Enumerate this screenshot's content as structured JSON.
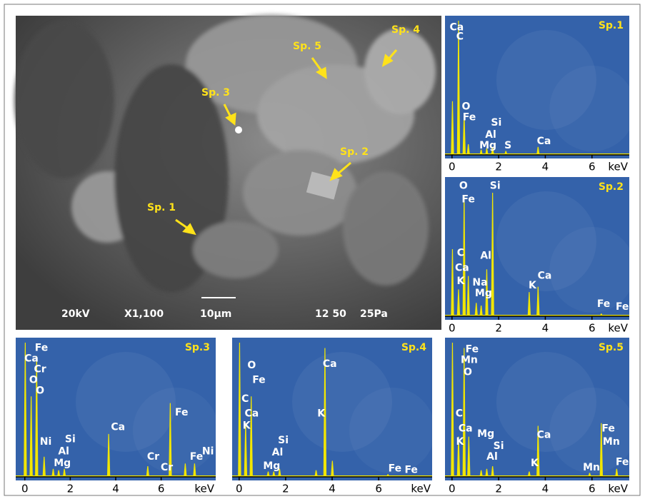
{
  "image": {
    "labels": [
      "Sp. 1",
      "Sp. 2",
      "Sp. 3",
      "Sp. 4",
      "Sp. 5"
    ],
    "info": [
      "20kV",
      "X1,100",
      "10μm",
      "12 50",
      "25Pa"
    ]
  },
  "chart_data": [
    {
      "type": "spectrum",
      "title": "Sp.1",
      "xlabel": "keV",
      "color": "#f2e600",
      "background": "#3462aa",
      "xlim": [
        -0.3,
        7.6
      ],
      "xticks": [
        0,
        2,
        4,
        6
      ],
      "ylim": [
        0,
        100
      ],
      "x": [
        0.02,
        0.28,
        0.52,
        0.7,
        1.25,
        1.49,
        1.74,
        2.31,
        3.69
      ],
      "values": [
        40,
        100,
        30,
        8,
        4,
        5,
        6,
        3,
        6
      ],
      "annotations": [
        {
          "text": "Ca",
          "x": 0.2,
          "y": 95
        },
        {
          "text": "C",
          "x": 0.34,
          "y": 88
        },
        {
          "text": "O",
          "x": 0.6,
          "y": 36
        },
        {
          "text": "Fe",
          "x": 0.74,
          "y": 28
        },
        {
          "text": "Si",
          "x": 1.9,
          "y": 24
        },
        {
          "text": "Al",
          "x": 1.66,
          "y": 15
        },
        {
          "text": "Mg",
          "x": 1.54,
          "y": 7
        },
        {
          "text": "S",
          "x": 2.4,
          "y": 7
        },
        {
          "text": "Ca",
          "x": 3.94,
          "y": 10
        }
      ]
    },
    {
      "type": "spectrum",
      "title": "Sp.2",
      "xlabel": "keV",
      "color": "#f2e600",
      "background": "#3462aa",
      "xlim": [
        -0.3,
        7.6
      ],
      "xticks": [
        0,
        2,
        4,
        6
      ],
      "ylim": [
        0,
        100
      ],
      "x": [
        0.02,
        0.28,
        0.52,
        0.7,
        1.04,
        1.25,
        1.49,
        1.74,
        3.31,
        3.69,
        6.4
      ],
      "values": [
        50,
        20,
        90,
        30,
        10,
        8,
        35,
        92,
        18,
        22,
        2
      ],
      "annotations": [
        {
          "text": "O",
          "x": 0.49,
          "y": 97
        },
        {
          "text": "Fe",
          "x": 0.7,
          "y": 87
        },
        {
          "text": "Si",
          "x": 1.85,
          "y": 97
        },
        {
          "text": "Al",
          "x": 1.45,
          "y": 45
        },
        {
          "text": "C",
          "x": 0.37,
          "y": 47
        },
        {
          "text": "Ca",
          "x": 0.43,
          "y": 36
        },
        {
          "text": "K",
          "x": 0.37,
          "y": 26
        },
        {
          "text": "Na",
          "x": 1.2,
          "y": 25
        },
        {
          "text": "Mg",
          "x": 1.35,
          "y": 17
        },
        {
          "text": "K",
          "x": 3.45,
          "y": 23
        },
        {
          "text": "Ca",
          "x": 3.97,
          "y": 30
        },
        {
          "text": "Fe",
          "x": 6.5,
          "y": 9
        },
        {
          "text": "Fe",
          "x": 7.3,
          "y": 7
        }
      ]
    },
    {
      "type": "spectrum",
      "title": "Sp.3",
      "xlabel": "keV",
      "color": "#f2e600",
      "background": "#3462aa",
      "xlim": [
        -0.4,
        8.4
      ],
      "xticks": [
        0,
        2,
        4,
        6
      ],
      "ylim": [
        0,
        100
      ],
      "x": [
        0.02,
        0.28,
        0.52,
        0.85,
        1.25,
        1.49,
        1.74,
        3.69,
        5.41,
        6.4,
        7.06,
        7.47
      ],
      "values": [
        100,
        60,
        90,
        15,
        6,
        5,
        6,
        32,
        8,
        55,
        10,
        10
      ],
      "annotations": [
        {
          "text": "Fe",
          "x": 0.73,
          "y": 96
        },
        {
          "text": "Ca",
          "x": 0.29,
          "y": 88
        },
        {
          "text": "Cr",
          "x": 0.67,
          "y": 80
        },
        {
          "text": "O",
          "x": 0.38,
          "y": 72
        },
        {
          "text": "O",
          "x": 0.67,
          "y": 64
        },
        {
          "text": "Ni",
          "x": 0.92,
          "y": 26
        },
        {
          "text": "Si",
          "x": 2.0,
          "y": 28
        },
        {
          "text": "Al",
          "x": 1.71,
          "y": 19
        },
        {
          "text": "Mg",
          "x": 1.65,
          "y": 10
        },
        {
          "text": "Ca",
          "x": 4.1,
          "y": 37
        },
        {
          "text": "Cr",
          "x": 5.65,
          "y": 15
        },
        {
          "text": "Cr",
          "x": 6.25,
          "y": 7
        },
        {
          "text": "Fe",
          "x": 6.9,
          "y": 48
        },
        {
          "text": "Fe",
          "x": 7.55,
          "y": 15
        },
        {
          "text": "Ni",
          "x": 8.06,
          "y": 19
        }
      ]
    },
    {
      "type": "spectrum",
      "title": "Sp.4",
      "xlabel": "keV",
      "color": "#f2e600",
      "background": "#3462aa",
      "xlim": [
        -0.3,
        8.3
      ],
      "xticks": [
        0,
        2,
        4,
        6
      ],
      "ylim": [
        0,
        100
      ],
      "x": [
        0.02,
        0.28,
        0.52,
        1.25,
        1.49,
        1.74,
        3.31,
        3.69,
        4.01,
        6.4
      ],
      "values": [
        100,
        40,
        60,
        4,
        4,
        6,
        5,
        96,
        12,
        2
      ],
      "annotations": [
        {
          "text": "O",
          "x": 0.54,
          "y": 83
        },
        {
          "text": "Fe",
          "x": 0.85,
          "y": 72
        },
        {
          "text": "C",
          "x": 0.26,
          "y": 58
        },
        {
          "text": "Ca",
          "x": 0.54,
          "y": 47
        },
        {
          "text": "K",
          "x": 0.32,
          "y": 38
        },
        {
          "text": "Ca",
          "x": 3.9,
          "y": 84
        },
        {
          "text": "K",
          "x": 3.53,
          "y": 47
        },
        {
          "text": "Si",
          "x": 1.9,
          "y": 27
        },
        {
          "text": "Al",
          "x": 1.65,
          "y": 18
        },
        {
          "text": "Mg",
          "x": 1.4,
          "y": 8
        },
        {
          "text": "Fe",
          "x": 6.7,
          "y": 6
        },
        {
          "text": "Fe",
          "x": 7.4,
          "y": 5
        }
      ]
    },
    {
      "type": "spectrum",
      "title": "Sp.5",
      "xlabel": "keV",
      "color": "#f2e600",
      "background": "#3462aa",
      "xlim": [
        -0.3,
        7.6
      ],
      "xticks": [
        0,
        2,
        4,
        6
      ],
      "ylim": [
        0,
        100
      ],
      "x": [
        0.02,
        0.28,
        0.52,
        0.72,
        1.25,
        1.49,
        1.74,
        3.31,
        3.69,
        5.9,
        6.4,
        7.06
      ],
      "values": [
        100,
        30,
        96,
        30,
        5,
        6,
        8,
        4,
        38,
        3,
        40,
        6
      ],
      "annotations": [
        {
          "text": "Fe",
          "x": 0.86,
          "y": 95
        },
        {
          "text": "Mn",
          "x": 0.74,
          "y": 87
        },
        {
          "text": "O",
          "x": 0.68,
          "y": 78
        },
        {
          "text": "C",
          "x": 0.31,
          "y": 47
        },
        {
          "text": "Ca",
          "x": 0.58,
          "y": 36
        },
        {
          "text": "K",
          "x": 0.34,
          "y": 26
        },
        {
          "text": "Mg",
          "x": 1.45,
          "y": 32
        },
        {
          "text": "Si",
          "x": 2.0,
          "y": 23
        },
        {
          "text": "Al",
          "x": 1.72,
          "y": 15
        },
        {
          "text": "Ca",
          "x": 3.94,
          "y": 31
        },
        {
          "text": "K",
          "x": 3.54,
          "y": 10
        },
        {
          "text": "Fe",
          "x": 6.7,
          "y": 36
        },
        {
          "text": "Mn",
          "x": 6.83,
          "y": 26
        },
        {
          "text": "Mn",
          "x": 5.98,
          "y": 7
        },
        {
          "text": "Fe",
          "x": 7.3,
          "y": 11
        }
      ]
    }
  ]
}
